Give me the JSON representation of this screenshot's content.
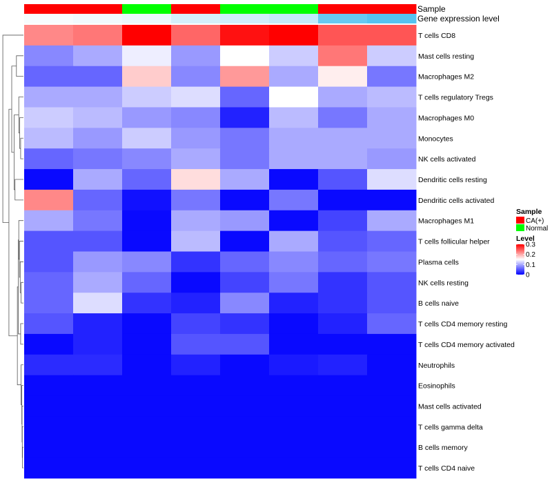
{
  "chart_data": {
    "type": "heatmap",
    "columns": 8,
    "sample_groups": [
      "CA(+)",
      "CA(+)",
      "Normal",
      "CA(+)",
      "Normal",
      "Normal",
      "CA(+)",
      "CA(+)"
    ],
    "gene_expression_level": [
      0.05,
      0.08,
      0.12,
      0.25,
      0.28,
      0.35,
      0.9,
      1.0
    ],
    "annotation_labels": [
      "Sample",
      "Gene expression level"
    ],
    "rows": [
      "T cells CD8",
      "Mast cells resting",
      "Macrophages M2",
      "T cells regulatory  Tregs",
      "Macrophages M0",
      "Monocytes",
      "NK cells activated",
      "Dendritic cells resting",
      "Dendritic cells activated",
      "Macrophages M1",
      "T cells follicular helper",
      "Plasma cells",
      "NK cells resting",
      "B cells naive",
      "T cells CD4 memory resting",
      "T cells CD4 memory activated",
      "Neutrophils",
      "Eosinophils",
      "Mast cells activated",
      "T cells gamma delta",
      "B cells memory",
      "T cells CD4 naive"
    ],
    "values": [
      [
        0.22,
        0.23,
        0.3,
        0.24,
        0.29,
        0.3,
        0.25,
        0.25
      ],
      [
        0.08,
        0.1,
        0.14,
        0.09,
        0.15,
        0.12,
        0.23,
        0.12
      ],
      [
        0.06,
        0.06,
        0.18,
        0.08,
        0.21,
        0.1,
        0.16,
        0.07
      ],
      [
        0.1,
        0.1,
        0.12,
        0.13,
        0.06,
        0.15,
        0.1,
        0.11
      ],
      [
        0.12,
        0.11,
        0.09,
        0.08,
        0.02,
        0.11,
        0.07,
        0.1
      ],
      [
        0.11,
        0.09,
        0.12,
        0.09,
        0.07,
        0.1,
        0.1,
        0.1
      ],
      [
        0.06,
        0.07,
        0.08,
        0.1,
        0.07,
        0.1,
        0.1,
        0.09
      ],
      [
        0.005,
        0.1,
        0.06,
        0.17,
        0.1,
        0.005,
        0.05,
        0.13
      ],
      [
        0.22,
        0.06,
        0.01,
        0.07,
        0.005,
        0.07,
        0.005,
        0.005
      ],
      [
        0.1,
        0.07,
        0.005,
        0.1,
        0.09,
        0.005,
        0.04,
        0.1
      ],
      [
        0.05,
        0.05,
        0.005,
        0.11,
        0.005,
        0.1,
        0.05,
        0.06
      ],
      [
        0.05,
        0.09,
        0.08,
        0.03,
        0.06,
        0.08,
        0.06,
        0.07
      ],
      [
        0.06,
        0.1,
        0.06,
        0.005,
        0.04,
        0.07,
        0.03,
        0.05
      ],
      [
        0.06,
        0.13,
        0.03,
        0.02,
        0.08,
        0.02,
        0.03,
        0.05
      ],
      [
        0.05,
        0.02,
        0.005,
        0.04,
        0.03,
        0.005,
        0.02,
        0.06
      ],
      [
        0.005,
        0.02,
        0.005,
        0.05,
        0.05,
        0.005,
        0.005,
        0.005
      ],
      [
        0.025,
        0.025,
        0.005,
        0.02,
        0.005,
        0.015,
        0.02,
        0.005
      ],
      [
        0.005,
        0.005,
        0.005,
        0.005,
        0.005,
        0.005,
        0.005,
        0.005
      ],
      [
        0.005,
        0.005,
        0.005,
        0.005,
        0.005,
        0.005,
        0.005,
        0.005
      ],
      [
        0.005,
        0.005,
        0.005,
        0.005,
        0.005,
        0.005,
        0.005,
        0.005
      ],
      [
        0.005,
        0.005,
        0.005,
        0.005,
        0.005,
        0.005,
        0.005,
        0.005
      ],
      [
        0.005,
        0.005,
        0.005,
        0.005,
        0.005,
        0.005,
        0.005,
        0.005
      ]
    ],
    "color_scale": {
      "min": 0,
      "mid": 0.15,
      "max": 0.3,
      "low": "#0000FF",
      "midColor": "#FFFFFF",
      "high": "#FF0000"
    },
    "legend": {
      "sample_title": "Sample",
      "sample_items": [
        {
          "label": "CA(+)",
          "color": "#FF0000"
        },
        {
          "label": "Normal",
          "color": "#00FF00"
        }
      ],
      "level_title": "Level",
      "level_ticks": [
        "0.3",
        "0.2",
        "0.1",
        "0"
      ],
      "level_tick_values": [
        0.3,
        0.2,
        0.1,
        0
      ]
    },
    "sample_colors": {
      "CA(+)": "#FF0000",
      "Normal": "#00FF00"
    },
    "expression_colors": {
      "low": "#FFFFFF",
      "high": "#56C3F0"
    }
  }
}
